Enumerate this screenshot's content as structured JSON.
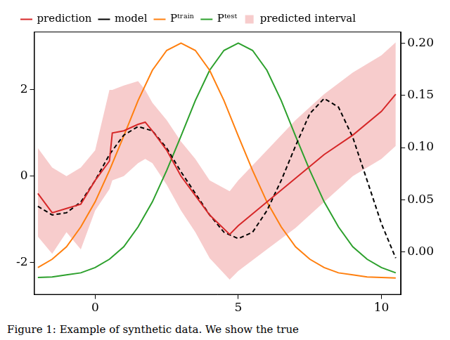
{
  "chart_data": {
    "type": "line",
    "caption": "Figure 1: Example of synthetic data. We show the true",
    "xlim": [
      -2.13,
      10.68
    ],
    "xticks": [
      0,
      5,
      10
    ],
    "ylim": [
      -2.75,
      3.35
    ],
    "yticks": [
      -2,
      0,
      2
    ],
    "y2lim": [
      -0.041,
      0.211
    ],
    "y2ticks": [
      {
        "value": 0,
        "label": "0.00"
      },
      {
        "value": 0.05,
        "label": "0.05"
      },
      {
        "value": 0.1,
        "label": "0.10"
      },
      {
        "value": 0.15,
        "label": "0.15"
      },
      {
        "value": 0.2,
        "label": "0.20"
      }
    ],
    "grid": false,
    "legend": "top left",
    "series": [
      {
        "name": "prediction",
        "color": "#d62728",
        "line_style": "solid",
        "x": [
          -2,
          -1.5,
          -1,
          -0.5,
          0,
          0.5,
          0.6,
          1,
          1.5,
          1.75,
          2,
          2.5,
          3,
          3.5,
          4,
          4.7,
          5,
          6,
          7,
          8,
          9,
          10,
          10.5
        ],
        "values": [
          -0.4,
          -0.85,
          -0.75,
          -0.65,
          -0.1,
          0.35,
          1.0,
          1.05,
          1.2,
          1.25,
          1.05,
          0.6,
          0.0,
          -0.45,
          -0.9,
          -1.35,
          -1.15,
          -0.6,
          -0.05,
          0.5,
          0.95,
          1.5,
          1.9
        ]
      },
      {
        "name": "model",
        "color": "#000000",
        "line_style": "dashed",
        "x": [
          -2,
          -1.5,
          -1,
          -0.5,
          0,
          0.5,
          1,
          1.5,
          2,
          2.5,
          3,
          3.5,
          4,
          4.5,
          5,
          5.5,
          6,
          6.5,
          7,
          7.5,
          8,
          8.5,
          9,
          9.5,
          10,
          10.5
        ],
        "values": [
          -0.7,
          -0.9,
          -0.85,
          -0.6,
          -0.1,
          0.5,
          0.95,
          1.15,
          1.05,
          0.65,
          0.1,
          -0.4,
          -0.9,
          -1.3,
          -1.45,
          -1.3,
          -0.8,
          -0.1,
          0.7,
          1.45,
          1.8,
          1.6,
          0.9,
          -0.1,
          -1.1,
          -1.9
        ]
      },
      {
        "name": "predicted interval",
        "color": "#f7cccc",
        "type": "area",
        "x": [
          -2,
          -1.5,
          -1,
          -0.5,
          0,
          0.5,
          0.6,
          1,
          1.5,
          1.75,
          2,
          2.5,
          3,
          3.5,
          4,
          4.7,
          5,
          6,
          7,
          8,
          9,
          10,
          10.5
        ],
        "lower": [
          -1.4,
          -1.8,
          -1.3,
          -1.7,
          -0.8,
          -0.3,
          -0.1,
          0.0,
          0.3,
          0.4,
          0.3,
          -0.2,
          -0.8,
          -1.3,
          -1.9,
          -2.4,
          -2.2,
          -1.7,
          -1.2,
          -0.6,
          0.0,
          0.4,
          0.7
        ],
        "upper": [
          0.65,
          0.2,
          0.0,
          0.2,
          0.6,
          2.0,
          2.0,
          2.1,
          2.2,
          2.0,
          1.7,
          1.3,
          0.8,
          0.4,
          -0.1,
          -0.35,
          -0.1,
          0.6,
          1.3,
          1.9,
          2.4,
          2.8,
          3.1
        ]
      },
      {
        "name": "Pᵗʳᵃⁱⁿ",
        "color": "#ff7f0e",
        "line_style": "solid",
        "axis": "y2",
        "x": [
          -2,
          -1.5,
          -1,
          -0.5,
          0,
          0.5,
          1,
          1.5,
          2,
          2.5,
          3,
          3.5,
          4,
          4.5,
          5,
          5.5,
          6,
          6.5,
          7,
          7.5,
          8,
          8.5,
          9,
          9.5,
          10,
          10.5
        ],
        "values": [
          -0.015,
          -0.007,
          0.005,
          0.024,
          0.048,
          0.078,
          0.111,
          0.145,
          0.174,
          0.193,
          0.2,
          0.193,
          0.174,
          0.145,
          0.111,
          0.078,
          0.048,
          0.024,
          0.005,
          -0.007,
          -0.015,
          -0.02,
          -0.022,
          -0.024,
          -0.0245,
          -0.025
        ]
      },
      {
        "name": "Pᵗᵉˢᵗ",
        "color": "#2ca02c",
        "line_style": "solid",
        "axis": "y2",
        "x": [
          -2,
          -1.5,
          -1,
          -0.5,
          0,
          0.5,
          1,
          1.5,
          2,
          2.5,
          3,
          3.5,
          4,
          4.5,
          5,
          5.5,
          6,
          6.5,
          7,
          7.5,
          8,
          8.5,
          9,
          9.5,
          10,
          10.5
        ],
        "values": [
          -0.0245,
          -0.024,
          -0.022,
          -0.02,
          -0.015,
          -0.007,
          0.005,
          0.024,
          0.048,
          0.078,
          0.111,
          0.145,
          0.174,
          0.193,
          0.2,
          0.193,
          0.174,
          0.145,
          0.111,
          0.078,
          0.048,
          0.024,
          0.005,
          -0.007,
          -0.015,
          -0.02
        ]
      }
    ]
  }
}
